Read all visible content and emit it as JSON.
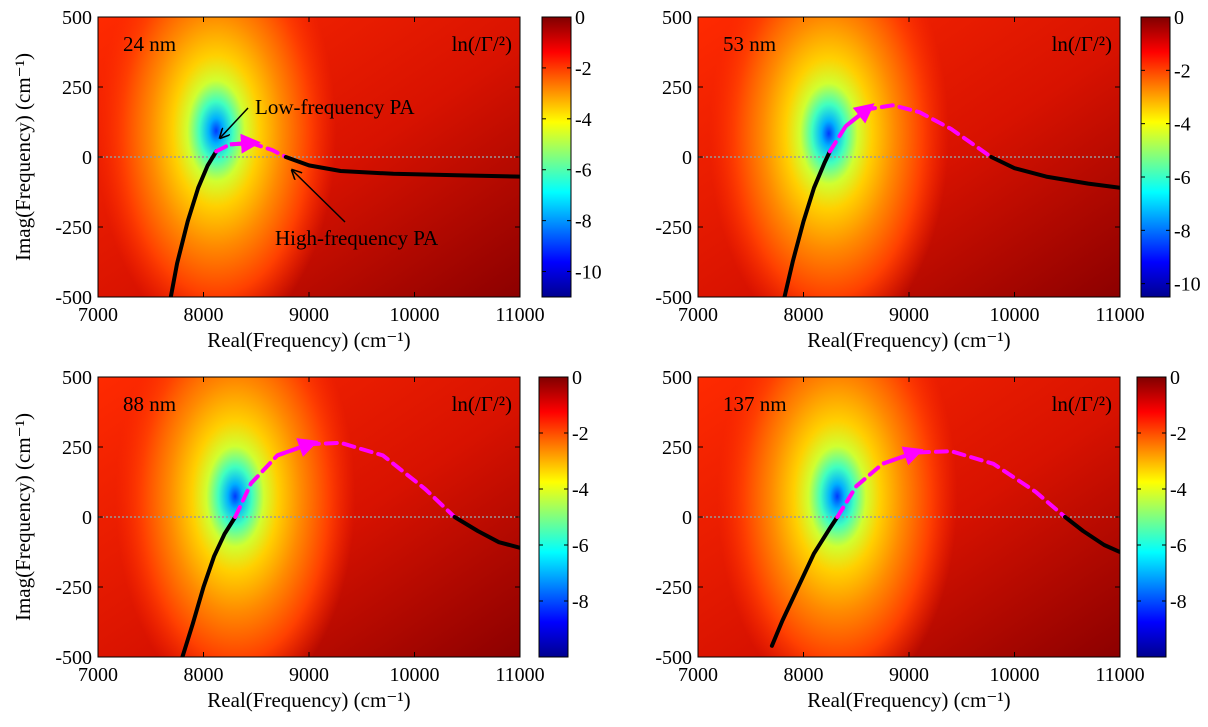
{
  "chart_data": [
    {
      "type": "heatmap",
      "panel_label": "24 nm",
      "colorbar_title": "ln(/Γ/²)",
      "xlabel": "Real(Frequency) (cm⁻¹)",
      "ylabel": "Imag(Frequency) (cm⁻¹)",
      "xlim": [
        7000,
        11000
      ],
      "ylim": [
        -500,
        500
      ],
      "xticks": [
        "7000",
        "8000",
        "9000",
        "10000",
        "11000"
      ],
      "yticks": [
        "-500",
        "-250",
        "0",
        "250",
        "500"
      ],
      "colorbar_range": [
        -11,
        0
      ],
      "colorbar_ticks": [
        "0",
        "-2",
        "-4",
        "-6",
        "-8",
        "-10"
      ],
      "colorbar_tick_values": [
        0,
        -2,
        -4,
        -6,
        -8,
        -10
      ],
      "colormap": "jet",
      "pole_center": [
        8120,
        40
      ],
      "annotations": [
        "Low-frequency PA",
        "High-frequency PA"
      ],
      "series": [
        {
          "style": "solid",
          "color": "#000000",
          "points": [
            [
              7690,
              -500
            ],
            [
              7750,
              -380
            ],
            [
              7850,
              -230
            ],
            [
              7950,
              -110
            ],
            [
              8040,
              -30
            ],
            [
              8120,
              20
            ]
          ]
        },
        {
          "style": "dashed",
          "color": "#ff00ff",
          "points": [
            [
              8120,
              20
            ],
            [
              8250,
              45
            ],
            [
              8450,
              50
            ],
            [
              8650,
              25
            ],
            [
              8780,
              0
            ]
          ]
        },
        {
          "style": "solid",
          "color": "#000000",
          "points": [
            [
              8780,
              0
            ],
            [
              9000,
              -30
            ],
            [
              9300,
              -50
            ],
            [
              9800,
              -60
            ],
            [
              10400,
              -65
            ],
            [
              11000,
              -70
            ]
          ]
        }
      ]
    },
    {
      "type": "heatmap",
      "panel_label": "53 nm",
      "colorbar_title": "ln(/Γ/²)",
      "xlabel": "Real(Frequency) (cm⁻¹)",
      "ylabel": "",
      "xlim": [
        7000,
        11000
      ],
      "ylim": [
        -500,
        500
      ],
      "xticks": [
        "7000",
        "8000",
        "9000",
        "10000",
        "11000"
      ],
      "yticks": [
        "-500",
        "-250",
        "0",
        "250",
        "500"
      ],
      "colorbar_range": [
        -10.5,
        0
      ],
      "colorbar_ticks": [
        "0",
        "-2",
        "-4",
        "-6",
        "-8",
        "-10"
      ],
      "colorbar_tick_values": [
        0,
        -2,
        -4,
        -6,
        -8,
        -10
      ],
      "colormap": "jet",
      "pole_center": [
        8240,
        30
      ],
      "annotations": [],
      "series": [
        {
          "style": "solid",
          "color": "#000000",
          "points": [
            [
              7820,
              -500
            ],
            [
              7900,
              -370
            ],
            [
              8000,
              -230
            ],
            [
              8100,
              -110
            ],
            [
              8200,
              -20
            ],
            [
              8250,
              20
            ]
          ]
        },
        {
          "style": "dashed",
          "color": "#ff00ff",
          "points": [
            [
              8250,
              20
            ],
            [
              8400,
              110
            ],
            [
              8600,
              170
            ],
            [
              8850,
              185
            ],
            [
              9100,
              160
            ],
            [
              9400,
              100
            ],
            [
              9780,
              0
            ]
          ]
        },
        {
          "style": "solid",
          "color": "#000000",
          "points": [
            [
              9780,
              0
            ],
            [
              10000,
              -40
            ],
            [
              10300,
              -70
            ],
            [
              10700,
              -95
            ],
            [
              11000,
              -110
            ]
          ]
        }
      ]
    },
    {
      "type": "heatmap",
      "panel_label": "88 nm",
      "colorbar_title": "ln(/Γ/²)",
      "xlabel": "Real(Frequency) (cm⁻¹)",
      "ylabel": "Imag(Frequency) (cm⁻¹)",
      "xlim": [
        7000,
        11000
      ],
      "ylim": [
        -500,
        500
      ],
      "xticks": [
        "7000",
        "8000",
        "9000",
        "10000",
        "11000"
      ],
      "yticks": [
        "-500",
        "-250",
        "0",
        "250",
        "500"
      ],
      "colorbar_range": [
        -10,
        0
      ],
      "colorbar_ticks": [
        "0",
        "-2",
        "-4",
        "-6",
        "-8"
      ],
      "colorbar_tick_values": [
        0,
        -2,
        -4,
        -6,
        -8
      ],
      "colormap": "jet",
      "pole_center": [
        8300,
        20
      ],
      "annotations": [],
      "series": [
        {
          "style": "solid",
          "color": "#000000",
          "points": [
            [
              7800,
              -500
            ],
            [
              7900,
              -380
            ],
            [
              8000,
              -250
            ],
            [
              8100,
              -140
            ],
            [
              8200,
              -60
            ],
            [
              8300,
              0
            ]
          ]
        },
        {
          "style": "dashed",
          "color": "#ff00ff",
          "points": [
            [
              8300,
              0
            ],
            [
              8450,
              120
            ],
            [
              8700,
              220
            ],
            [
              9000,
              260
            ],
            [
              9300,
              265
            ],
            [
              9700,
              220
            ],
            [
              10100,
              100
            ],
            [
              10380,
              0
            ]
          ]
        },
        {
          "style": "solid",
          "color": "#000000",
          "points": [
            [
              10380,
              0
            ],
            [
              10600,
              -50
            ],
            [
              10800,
              -90
            ],
            [
              11000,
              -110
            ]
          ]
        }
      ]
    },
    {
      "type": "heatmap",
      "panel_label": "137 nm",
      "colorbar_title": "ln(/Γ/²)",
      "xlabel": "Real(Frequency) (cm⁻¹)",
      "ylabel": "",
      "xlim": [
        7000,
        11000
      ],
      "ylim": [
        -500,
        500
      ],
      "xticks": [
        "7000",
        "8000",
        "9000",
        "10000",
        "11000"
      ],
      "yticks": [
        "-500",
        "-250",
        "0",
        "250",
        "500"
      ],
      "colorbar_range": [
        -10,
        0
      ],
      "colorbar_ticks": [
        "0",
        "-2",
        "-4",
        "-6",
        "-8"
      ],
      "colorbar_tick_values": [
        0,
        -2,
        -4,
        -6,
        -8
      ],
      "colormap": "jet",
      "pole_center": [
        8320,
        20
      ],
      "annotations": [],
      "series": [
        {
          "style": "solid",
          "color": "#000000",
          "points": [
            [
              7700,
              -460
            ],
            [
              7800,
              -370
            ],
            [
              7950,
              -250
            ],
            [
              8100,
              -130
            ],
            [
              8250,
              -40
            ],
            [
              8320,
              0
            ]
          ]
        },
        {
          "style": "dashed",
          "color": "#ff00ff",
          "points": [
            [
              8320,
              0
            ],
            [
              8500,
              110
            ],
            [
              8750,
              190
            ],
            [
              9050,
              230
            ],
            [
              9400,
              235
            ],
            [
              9800,
              190
            ],
            [
              10200,
              90
            ],
            [
              10480,
              0
            ]
          ]
        },
        {
          "style": "solid",
          "color": "#000000",
          "points": [
            [
              10480,
              0
            ],
            [
              10650,
              -50
            ],
            [
              10850,
              -100
            ],
            [
              11000,
              -125
            ]
          ]
        }
      ]
    }
  ]
}
